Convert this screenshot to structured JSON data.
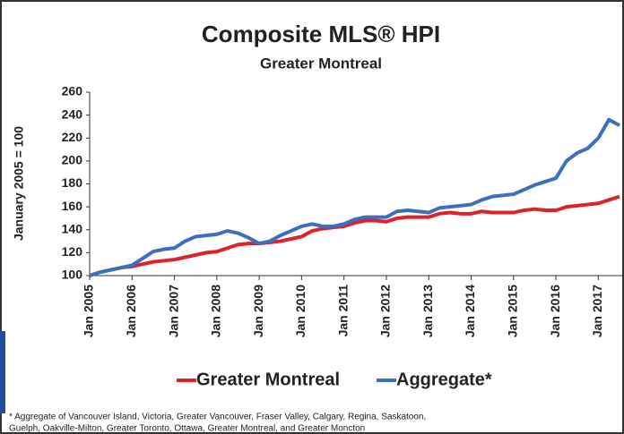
{
  "chart_data": {
    "type": "line",
    "title": "Composite MLS® HPI",
    "subtitle": "Greater Montreal",
    "y_label": "January 2005 = 100",
    "categories": [
      "Jan 2005",
      null,
      null,
      null,
      "Jan 2006",
      null,
      null,
      null,
      "Jan 2007",
      null,
      null,
      null,
      "Jan 2008",
      null,
      null,
      null,
      "Jan 2009",
      null,
      null,
      null,
      "Jan 2010",
      null,
      null,
      null,
      "Jan 2011",
      null,
      null,
      null,
      "Jan 2012",
      null,
      null,
      null,
      "Jan 2013",
      null,
      null,
      null,
      "Jan 2014",
      null,
      null,
      null,
      "Jan 2015",
      null,
      null,
      null,
      "Jan 2016",
      null,
      null,
      null,
      "Jan 2017",
      null,
      null
    ],
    "series": [
      {
        "name": "Greater Montreal",
        "color": "#e0202a",
        "values": [
          100,
          103,
          105,
          107,
          108,
          110,
          112,
          113,
          114,
          116,
          118,
          120,
          121,
          124,
          127,
          128,
          128,
          129,
          130,
          132,
          134,
          139,
          141,
          142,
          143,
          146,
          148,
          148,
          147,
          150,
          151,
          151,
          151,
          154,
          155,
          154,
          154,
          156,
          155,
          155,
          155,
          157,
          158,
          157,
          157,
          160,
          161,
          162,
          163,
          166,
          169
        ]
      },
      {
        "name": "Aggregate*",
        "color": "#3c6fc0",
        "values": [
          100,
          103,
          105,
          107,
          109,
          115,
          121,
          123,
          124,
          130,
          134,
          135,
          136,
          139,
          137,
          133,
          128,
          130,
          135,
          139,
          143,
          145,
          143,
          143,
          145,
          149,
          151,
          151,
          151,
          156,
          157,
          156,
          155,
          159,
          160,
          161,
          162,
          166,
          169,
          170,
          171,
          175,
          179,
          182,
          185,
          200,
          207,
          211,
          220,
          236,
          231
        ]
      }
    ],
    "ylim": [
      100,
      260
    ],
    "yticks": [
      100,
      120,
      140,
      160,
      180,
      200,
      220,
      240,
      260
    ],
    "footnote": [
      "* Aggregate of Vancouver Island, Victoria, Greater Vancouver, Fraser Valley, Calgary, Regina, Saskatoon,",
      "Guelph, Oakville-Milton, Greater Toronto, Ottawa, Greater Montreal, and Greater Moncton"
    ]
  }
}
